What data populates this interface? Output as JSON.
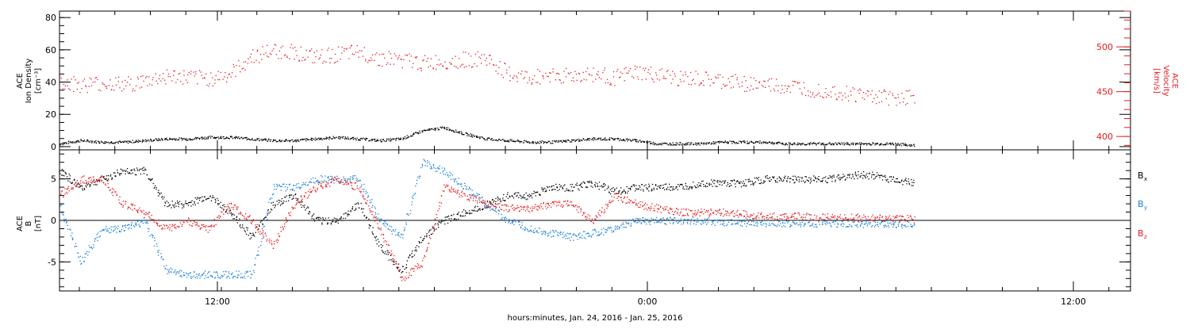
{
  "chart_data": [
    {
      "type": "scatter",
      "panel": "top",
      "ylabel_left": [
        "ACE",
        "Ion Density",
        "[cm⁻³]"
      ],
      "ylabel_right": [
        "ACE",
        "Velocity",
        "[km/s]"
      ],
      "ylim_left": [
        -2,
        84
      ],
      "yticks_left": [
        0,
        20,
        40,
        60,
        80
      ],
      "ylim_right": [
        385,
        540
      ],
      "yticks_right": [
        400,
        450,
        500
      ],
      "series": [
        {
          "axis": "left",
          "color": "#000000",
          "x": [
            0,
            1,
            2,
            3,
            4,
            5,
            6,
            7,
            8,
            9,
            10,
            11,
            12,
            13,
            14,
            15,
            16,
            17,
            18,
            19,
            20,
            21,
            22,
            23,
            24,
            25,
            26,
            27,
            28,
            29,
            30,
            31,
            32,
            33,
            34,
            35,
            36,
            37,
            38,
            39,
            40
          ],
          "values": [
            2,
            4,
            3,
            3,
            4,
            5,
            5,
            6,
            6,
            5,
            4,
            4,
            5,
            6,
            5,
            4,
            5,
            10,
            12,
            8,
            5,
            4,
            3,
            3,
            4,
            5,
            5,
            4,
            2,
            2,
            2,
            3,
            3,
            3,
            2,
            2,
            2,
            2,
            2,
            2,
            1
          ]
        },
        {
          "axis": "right",
          "color": "#e41a1c",
          "x": [
            0,
            1,
            2,
            3,
            4,
            5,
            6,
            7,
            8,
            9,
            10,
            11,
            12,
            13,
            14,
            15,
            16,
            17,
            18,
            19,
            20,
            21,
            22,
            23,
            24,
            25,
            26,
            27,
            28,
            29,
            30,
            31,
            32,
            33,
            34,
            35,
            36,
            37,
            38,
            39,
            40
          ],
          "values": [
            462,
            458,
            460,
            458,
            462,
            468,
            466,
            465,
            470,
            490,
            496,
            495,
            488,
            492,
            494,
            488,
            486,
            482,
            484,
            486,
            487,
            470,
            465,
            470,
            468,
            470,
            466,
            472,
            468,
            465,
            464,
            462,
            460,
            458,
            456,
            454,
            452,
            448,
            446,
            444,
            445
          ]
        }
      ]
    },
    {
      "type": "scatter",
      "panel": "bottom",
      "ylabel": [
        "ACE",
        "B",
        "[nT]"
      ],
      "ylim": [
        -8.5,
        8.5
      ],
      "yticks": [
        -5,
        0,
        5
      ],
      "series": [
        {
          "name": "Bx",
          "color": "#000000",
          "x": [
            0,
            1,
            2,
            3,
            4,
            5,
            6,
            7,
            8,
            9,
            10,
            11,
            12,
            13,
            14,
            15,
            16,
            17,
            18,
            19,
            20,
            21,
            22,
            23,
            24,
            25,
            26,
            27,
            28,
            29,
            30,
            31,
            32,
            33,
            34,
            35,
            36,
            37,
            38,
            39,
            40
          ],
          "values": [
            6,
            4,
            5,
            6,
            6,
            2,
            2,
            3,
            1,
            -2,
            2,
            3,
            0,
            0,
            2,
            -3,
            -6,
            -2,
            0,
            1,
            2,
            3,
            3,
            4,
            4,
            4.5,
            3.5,
            4,
            4,
            4,
            4.5,
            4.5,
            4.5,
            5,
            5,
            5,
            5,
            5.5,
            5.5,
            5,
            4.5
          ]
        },
        {
          "name": "By",
          "color": "#1a7fd6",
          "x": [
            0,
            1,
            2,
            3,
            4,
            5,
            6,
            7,
            8,
            9,
            10,
            11,
            12,
            13,
            14,
            15,
            16,
            17,
            18,
            19,
            20,
            21,
            22,
            23,
            24,
            25,
            26,
            27,
            28,
            29,
            30,
            31,
            32,
            33,
            34,
            35,
            36,
            37,
            38,
            39,
            40
          ],
          "values": [
            2,
            -5,
            -1,
            -1,
            0,
            -6,
            -6.5,
            -6.5,
            -6.5,
            -6.5,
            4,
            4,
            5,
            5,
            5,
            0,
            -2,
            7,
            6,
            4,
            2,
            0,
            -1,
            -1.5,
            -2,
            -1.5,
            -1,
            0,
            0,
            0,
            0,
            -0.2,
            -0.2,
            -0.3,
            -0.3,
            -0.3,
            -0.3,
            -0.3,
            -0.4,
            -0.4,
            -0.4
          ]
        },
        {
          "name": "Bz",
          "color": "#e41a1c",
          "x": [
            0,
            1,
            2,
            3,
            4,
            5,
            6,
            7,
            8,
            9,
            10,
            11,
            12,
            13,
            14,
            15,
            16,
            17,
            18,
            19,
            20,
            21,
            22,
            23,
            24,
            25,
            26,
            27,
            28,
            29,
            30,
            31,
            32,
            33,
            34,
            35,
            36,
            37,
            38,
            39,
            40
          ],
          "values": [
            3,
            5,
            5,
            2,
            1,
            -1,
            0,
            -1,
            2,
            0,
            -3,
            2,
            4,
            5,
            4,
            -1,
            -7,
            -5,
            4,
            3,
            2,
            1.5,
            1.5,
            2,
            2,
            0,
            3,
            2,
            1.5,
            1,
            1,
            1,
            0.8,
            0.6,
            0.5,
            0.5,
            0.4,
            0.4,
            0.3,
            0.3,
            0.2
          ]
        }
      ],
      "legend_labels": {
        "Bx": [
          "B",
          "x"
        ],
        "By": [
          "B",
          "y"
        ],
        "Bz": [
          "B",
          "z"
        ]
      },
      "legend_placement": "right"
    }
  ],
  "x_axis": {
    "tick_labels": [
      "12:00",
      "0:00",
      "12:00"
    ],
    "xlabel": "hours:minutes, Jan. 24, 2016 - Jan. 25, 2016"
  },
  "colors": {
    "black": "#000000",
    "blue": "#1a7fd6",
    "red": "#e41a1c"
  }
}
